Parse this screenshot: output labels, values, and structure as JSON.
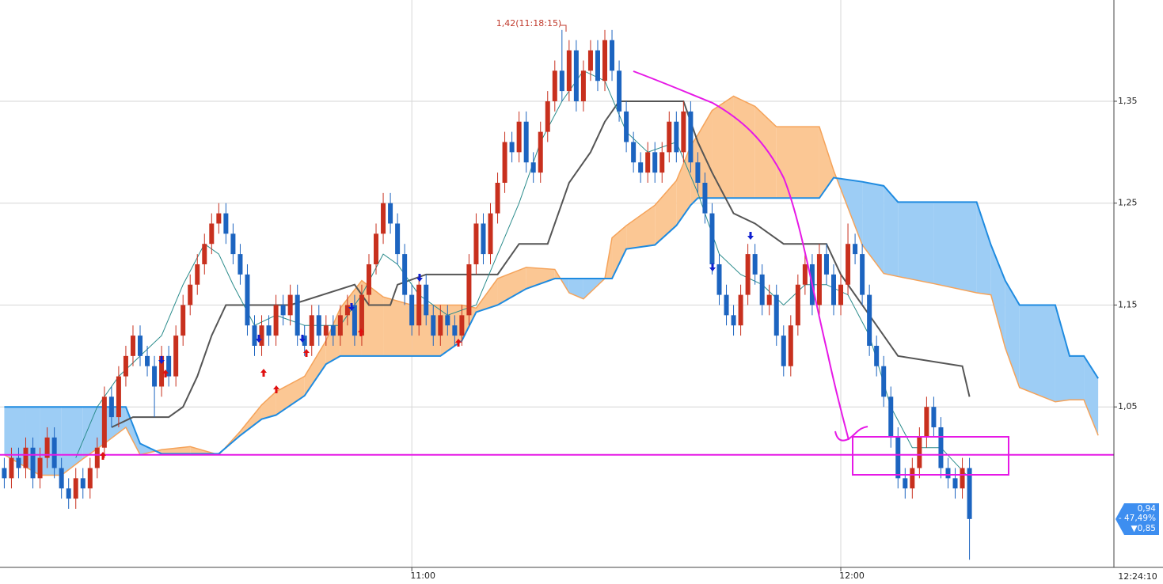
{
  "chart_data": {
    "type": "candlestick",
    "x": [
      3,
      4,
      5,
      6,
      7,
      8,
      9,
      10,
      11,
      12,
      13,
      14,
      15,
      16,
      17,
      18,
      19,
      20,
      21,
      22,
      23,
      24,
      25,
      26,
      27,
      28,
      29,
      30,
      31,
      32,
      33,
      34,
      35,
      36,
      37,
      38,
      39,
      40,
      41,
      42,
      43,
      44,
      45,
      46,
      47,
      48,
      49,
      50,
      51,
      52,
      53,
      54,
      55,
      56,
      57,
      58,
      59,
      60,
      61,
      62,
      63,
      64,
      65,
      66,
      67,
      68,
      69,
      70,
      71,
      72,
      73,
      74,
      75,
      76,
      77,
      78,
      79,
      80,
      81,
      82,
      83,
      84,
      85,
      86,
      87,
      88,
      89,
      90,
      91,
      92,
      93,
      94,
      95,
      96,
      97,
      98,
      99,
      100,
      101,
      102,
      103,
      104,
      105,
      106,
      107,
      108,
      109,
      110,
      111,
      112,
      113,
      114,
      115,
      116,
      117,
      118,
      119,
      120,
      121,
      122,
      123,
      124,
      125,
      126,
      127,
      128,
      129,
      130,
      131,
      132,
      133,
      134,
      135,
      136,
      137,
      138
    ],
    "open": [
      0.99,
      0.98,
      1.0,
      0.99,
      1.01,
      0.98,
      1.0,
      1.02,
      0.99,
      0.97,
      0.96,
      0.98,
      0.97,
      0.99,
      1.01,
      1.06,
      1.04,
      1.08,
      1.1,
      1.12,
      1.1,
      1.09,
      1.07,
      1.1,
      1.08,
      1.12,
      1.15,
      1.17,
      1.19,
      1.21,
      1.23,
      1.24,
      1.22,
      1.2,
      1.18,
      1.13,
      1.11,
      1.13,
      1.12,
      1.15,
      1.14,
      1.16,
      1.12,
      1.11,
      1.14,
      1.12,
      1.13,
      1.12,
      1.14,
      1.15,
      1.12,
      1.16,
      1.19,
      1.22,
      1.25,
      1.23,
      1.2,
      1.16,
      1.13,
      1.17,
      1.14,
      1.12,
      1.14,
      1.13,
      1.12,
      1.14,
      1.19,
      1.23,
      1.2,
      1.24,
      1.27,
      1.31,
      1.3,
      1.33,
      1.29,
      1.28,
      1.32,
      1.35,
      1.38,
      1.36,
      1.4,
      1.35,
      1.38,
      1.4,
      1.37,
      1.41,
      1.38,
      1.34,
      1.31,
      1.29,
      1.28,
      1.3,
      1.28,
      1.3,
      1.33,
      1.3,
      1.34,
      1.29,
      1.27,
      1.24,
      1.19,
      1.16,
      1.14,
      1.13,
      1.16,
      1.2,
      1.18,
      1.15,
      1.16,
      1.12,
      1.09,
      1.13,
      1.17,
      1.19,
      1.15,
      1.2,
      1.18,
      1.15,
      1.17,
      1.21,
      1.2,
      1.16,
      1.11,
      1.09,
      1.06,
      1.02,
      0.98,
      0.97,
      0.99,
      1.02,
      1.05,
      1.03,
      0.99,
      0.98,
      0.97,
      0.99
    ],
    "high": [
      1.0,
      1.01,
      1.01,
      1.02,
      1.02,
      1.01,
      1.03,
      1.03,
      1.0,
      0.98,
      0.99,
      0.99,
      1.0,
      1.02,
      1.07,
      1.07,
      1.09,
      1.11,
      1.13,
      1.13,
      1.11,
      1.1,
      1.11,
      1.11,
      1.13,
      1.16,
      1.18,
      1.2,
      1.22,
      1.24,
      1.25,
      1.25,
      1.23,
      1.21,
      1.19,
      1.14,
      1.14,
      1.14,
      1.16,
      1.16,
      1.17,
      1.17,
      1.13,
      1.15,
      1.15,
      1.14,
      1.14,
      1.15,
      1.16,
      1.16,
      1.17,
      1.2,
      1.23,
      1.26,
      1.26,
      1.24,
      1.21,
      1.17,
      1.18,
      1.18,
      1.15,
      1.15,
      1.15,
      1.14,
      1.15,
      1.2,
      1.24,
      1.24,
      1.25,
      1.28,
      1.32,
      1.32,
      1.34,
      1.34,
      1.3,
      1.33,
      1.36,
      1.39,
      1.42,
      1.41,
      1.41,
      1.39,
      1.41,
      1.41,
      1.42,
      1.42,
      1.39,
      1.35,
      1.32,
      1.3,
      1.31,
      1.31,
      1.31,
      1.34,
      1.34,
      1.35,
      1.35,
      1.3,
      1.28,
      1.25,
      1.2,
      1.17,
      1.15,
      1.17,
      1.21,
      1.21,
      1.19,
      1.17,
      1.17,
      1.13,
      1.14,
      1.18,
      1.2,
      1.2,
      1.21,
      1.21,
      1.19,
      1.18,
      1.23,
      1.22,
      1.21,
      1.17,
      1.12,
      1.1,
      1.07,
      1.03,
      0.99,
      1.0,
      1.03,
      1.06,
      1.06,
      1.04,
      1.0,
      0.99,
      1.0,
      1.0
    ],
    "low": [
      0.97,
      0.97,
      0.98,
      0.98,
      0.97,
      0.97,
      0.99,
      0.98,
      0.96,
      0.95,
      0.95,
      0.96,
      0.96,
      0.98,
      1.0,
      1.03,
      1.03,
      1.07,
      1.09,
      1.09,
      1.08,
      1.04,
      1.06,
      1.07,
      1.07,
      1.11,
      1.14,
      1.16,
      1.18,
      1.2,
      1.22,
      1.21,
      1.19,
      1.17,
      1.12,
      1.1,
      1.1,
      1.11,
      1.11,
      1.13,
      1.13,
      1.11,
      1.1,
      1.1,
      1.11,
      1.11,
      1.11,
      1.11,
      1.13,
      1.11,
      1.11,
      1.15,
      1.18,
      1.21,
      1.22,
      1.19,
      1.15,
      1.12,
      1.12,
      1.13,
      1.11,
      1.11,
      1.12,
      1.11,
      1.11,
      1.13,
      1.18,
      1.19,
      1.19,
      1.23,
      1.26,
      1.29,
      1.29,
      1.28,
      1.27,
      1.27,
      1.31,
      1.34,
      1.35,
      1.35,
      1.34,
      1.34,
      1.37,
      1.36,
      1.36,
      1.37,
      1.33,
      1.3,
      1.28,
      1.27,
      1.27,
      1.27,
      1.27,
      1.29,
      1.29,
      1.29,
      1.28,
      1.26,
      1.23,
      1.18,
      1.15,
      1.13,
      1.12,
      1.12,
      1.15,
      1.17,
      1.14,
      1.14,
      1.11,
      1.08,
      1.08,
      1.12,
      1.16,
      1.14,
      1.14,
      1.17,
      1.14,
      1.14,
      1.16,
      1.19,
      1.15,
      1.1,
      1.08,
      1.05,
      1.01,
      0.97,
      0.96,
      0.96,
      0.98,
      1.01,
      1.02,
      0.98,
      0.97,
      0.96,
      0.96,
      0.9
    ],
    "close": [
      0.98,
      1.0,
      0.99,
      1.01,
      0.98,
      1.0,
      1.02,
      0.99,
      0.97,
      0.96,
      0.98,
      0.97,
      0.99,
      1.01,
      1.06,
      1.04,
      1.08,
      1.1,
      1.12,
      1.1,
      1.09,
      1.07,
      1.1,
      1.08,
      1.12,
      1.15,
      1.17,
      1.19,
      1.21,
      1.23,
      1.24,
      1.22,
      1.2,
      1.18,
      1.13,
      1.11,
      1.13,
      1.12,
      1.15,
      1.14,
      1.16,
      1.12,
      1.11,
      1.14,
      1.12,
      1.13,
      1.12,
      1.14,
      1.15,
      1.12,
      1.16,
      1.19,
      1.22,
      1.25,
      1.23,
      1.2,
      1.16,
      1.13,
      1.17,
      1.14,
      1.12,
      1.14,
      1.13,
      1.12,
      1.14,
      1.19,
      1.23,
      1.2,
      1.24,
      1.27,
      1.31,
      1.3,
      1.33,
      1.29,
      1.28,
      1.32,
      1.35,
      1.38,
      1.36,
      1.4,
      1.35,
      1.38,
      1.4,
      1.37,
      1.41,
      1.38,
      1.34,
      1.31,
      1.29,
      1.28,
      1.3,
      1.28,
      1.3,
      1.33,
      1.3,
      1.34,
      1.29,
      1.27,
      1.24,
      1.19,
      1.16,
      1.14,
      1.13,
      1.16,
      1.2,
      1.18,
      1.15,
      1.16,
      1.12,
      1.09,
      1.13,
      1.17,
      1.19,
      1.15,
      1.2,
      1.18,
      1.15,
      1.17,
      1.21,
      1.2,
      1.16,
      1.11,
      1.09,
      1.06,
      1.02,
      0.98,
      0.97,
      0.99,
      1.02,
      1.05,
      1.03,
      0.99,
      0.98,
      0.97,
      0.99,
      0.94
    ],
    "up_color": "#c8301e",
    "down_color": "#1c64c0",
    "cloud": {
      "x": [
        3,
        6,
        8,
        11,
        14,
        17,
        20,
        22,
        25,
        29,
        33,
        36,
        39,
        41,
        45,
        48,
        50,
        53,
        56,
        60,
        64,
        67,
        69,
        72,
        76,
        80,
        82,
        84,
        87,
        88,
        90,
        94,
        97,
        99,
        100,
        102,
        105,
        108,
        111,
        117,
        119,
        123,
        126,
        128,
        133,
        139,
        141,
        143,
        145,
        150,
        152,
        154,
        156
      ],
      "span_a": [
        1.003,
        0.991,
        0.983,
        0.983,
        0.999,
        1.014,
        1.03,
        1.003,
        1.008,
        1.011,
        1.003,
        1.026,
        1.052,
        1.065,
        1.08,
        1.115,
        1.147,
        1.174,
        1.158,
        1.15,
        1.15,
        1.15,
        1.147,
        1.176,
        1.187,
        1.185,
        1.162,
        1.156,
        1.176,
        1.216,
        1.228,
        1.248,
        1.272,
        1.306,
        1.317,
        1.341,
        1.355,
        1.345,
        1.325,
        1.325,
        1.282,
        1.209,
        1.181,
        1.178,
        1.171,
        1.162,
        1.16,
        1.108,
        1.069,
        1.055,
        1.057,
        1.057,
        1.022
      ],
      "span_b": [
        1.05,
        1.05,
        1.05,
        1.05,
        1.05,
        1.05,
        1.05,
        1.014,
        1.004,
        1.004,
        1.004,
        1.022,
        1.038,
        1.042,
        1.061,
        1.092,
        1.1,
        1.1,
        1.1,
        1.1,
        1.1,
        1.115,
        1.143,
        1.15,
        1.166,
        1.176,
        1.176,
        1.176,
        1.176,
        1.176,
        1.205,
        1.209,
        1.228,
        1.248,
        1.255,
        1.255,
        1.255,
        1.255,
        1.255,
        1.255,
        1.275,
        1.271,
        1.267,
        1.251,
        1.251,
        1.251,
        1.209,
        1.174,
        1.15,
        1.15,
        1.1,
        1.1,
        1.078
      ],
      "span_a_color": "#f5a35a",
      "span_b_color": "#1f8be0",
      "up_fill": "#fbc794",
      "down_fill": "#9dcdf5"
    },
    "lines": [
      {
        "color": "#555555",
        "width": 2,
        "x": [
          18,
          21,
          26,
          28,
          30,
          32,
          34,
          43,
          52,
          54,
          57,
          58,
          62,
          68,
          72,
          75,
          79,
          82,
          85,
          87,
          89,
          98,
          100,
          102,
          105,
          108,
          112,
          118,
          120,
          123,
          128,
          137,
          138
        ],
        "values": [
          1.03,
          1.04,
          1.04,
          1.05,
          1.08,
          1.12,
          1.15,
          1.15,
          1.17,
          1.15,
          1.15,
          1.17,
          1.18,
          1.18,
          1.18,
          1.21,
          1.21,
          1.27,
          1.3,
          1.33,
          1.35,
          1.35,
          1.31,
          1.28,
          1.24,
          1.23,
          1.21,
          1.21,
          1.18,
          1.15,
          1.1,
          1.09,
          1.06
        ]
      },
      {
        "color": "#2b8c8c",
        "width": 1,
        "x": [
          13,
          16,
          19,
          22,
          25,
          28,
          31,
          33,
          35,
          38,
          41,
          45,
          50,
          53,
          56,
          58,
          61,
          65,
          69,
          72,
          75,
          78,
          81,
          84,
          87,
          90,
          93,
          97,
          100,
          103,
          106,
          109,
          112,
          115,
          118,
          121,
          124,
          127,
          130,
          134,
          138
        ],
        "values": [
          1.0,
          1.05,
          1.08,
          1.1,
          1.12,
          1.17,
          1.21,
          1.2,
          1.17,
          1.13,
          1.14,
          1.13,
          1.13,
          1.16,
          1.2,
          1.19,
          1.16,
          1.14,
          1.15,
          1.2,
          1.25,
          1.31,
          1.35,
          1.38,
          1.37,
          1.32,
          1.3,
          1.31,
          1.26,
          1.2,
          1.18,
          1.17,
          1.15,
          1.17,
          1.17,
          1.16,
          1.12,
          1.05,
          1.01,
          1.01,
          0.98
        ]
      }
    ],
    "level_line": {
      "value": 1.003,
      "color": "#e619e6"
    },
    "xlim": [
      2.4,
      158.2
    ],
    "ylim": [
      0.8925,
      1.4494
    ],
    "yticks": [
      {
        "value": 1.05,
        "label": "1,05"
      },
      {
        "value": 1.15,
        "label": "1,15"
      },
      {
        "value": 1.25,
        "label": "1,25"
      },
      {
        "value": 1.35,
        "label": "1,35"
      }
    ],
    "xticks": [
      {
        "value": 60,
        "label": "11:00"
      },
      {
        "value": 120,
        "label": "12:00"
      }
    ],
    "time_label": "12:24:10",
    "annotation": "1,42(11:18:15)",
    "price_box": {
      "last": "0,94",
      "change": "- 47,49%",
      "low": "▼0,85",
      "color": "#3d8ef0"
    },
    "grid": true
  }
}
